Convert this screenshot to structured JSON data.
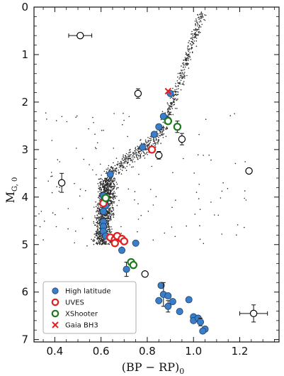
{
  "chart_data": {
    "type": "scatter",
    "xlabel": "(BP − RP)",
    "xlabel_sub": "0",
    "ylabel": "M",
    "ylabel_sub": "G, 0",
    "xlim": [
      0.31,
      1.37
    ],
    "ylim": [
      7.05,
      0.0
    ],
    "x_ticks": [
      0.4,
      0.6,
      0.8,
      1.0,
      1.2
    ],
    "x_tick_labels": [
      "0.4",
      "0.6",
      "0.8",
      "1.0",
      "1.2"
    ],
    "y_ticks": [
      0,
      1,
      2,
      3,
      4,
      5,
      6,
      7
    ],
    "y_tick_labels": [
      "0",
      "1",
      "2",
      "3",
      "4",
      "5",
      "6",
      "7"
    ],
    "y_inverted": true,
    "legend": {
      "placement": "bottom-left",
      "entries": [
        {
          "label": "High latitude",
          "marker": "filled-circle",
          "color": "#3a7dc9"
        },
        {
          "label": "UVES",
          "marker": "open-circle",
          "color": "#e02020"
        },
        {
          "label": "XShooter",
          "marker": "open-circle",
          "color": "#1e7a1e"
        },
        {
          "label": "Gaia BH3",
          "marker": "x",
          "color": "#e02020"
        }
      ]
    },
    "series": [
      {
        "name": "High latitude",
        "marker": "filled-circle",
        "color": "#3a7dc9",
        "points": [
          {
            "x": 0.9,
            "y": 1.82
          },
          {
            "x": 0.87,
            "y": 2.3
          },
          {
            "x": 0.89,
            "y": 2.38
          },
          {
            "x": 0.85,
            "y": 2.52
          },
          {
            "x": 0.83,
            "y": 2.68
          },
          {
            "x": 0.78,
            "y": 2.95
          },
          {
            "x": 0.64,
            "y": 3.52
          },
          {
            "x": 0.61,
            "y": 3.97
          },
          {
            "x": 0.62,
            "y": 4.18
          },
          {
            "x": 0.61,
            "y": 4.3
          },
          {
            "x": 0.61,
            "y": 4.52
          },
          {
            "x": 0.61,
            "y": 4.62
          },
          {
            "x": 0.61,
            "y": 4.72
          },
          {
            "x": 0.62,
            "y": 4.82
          },
          {
            "x": 0.65,
            "y": 4.86
          },
          {
            "x": 0.75,
            "y": 4.97
          },
          {
            "x": 0.69,
            "y": 5.12
          },
          {
            "x": 0.71,
            "y": 5.52,
            "yerr": 0.15
          },
          {
            "x": 0.86,
            "y": 5.86
          },
          {
            "x": 0.87,
            "y": 6.05,
            "yerr": 0.25
          },
          {
            "x": 0.85,
            "y": 6.18
          },
          {
            "x": 0.89,
            "y": 6.08
          },
          {
            "x": 0.89,
            "y": 6.3,
            "yerr": 0.12
          },
          {
            "x": 0.91,
            "y": 6.2
          },
          {
            "x": 0.94,
            "y": 6.41
          },
          {
            "x": 0.98,
            "y": 6.16
          },
          {
            "x": 1.0,
            "y": 6.52
          },
          {
            "x": 1.0,
            "y": 6.6
          },
          {
            "x": 1.02,
            "y": 6.55
          },
          {
            "x": 1.03,
            "y": 6.63,
            "yerr": 0.08
          },
          {
            "x": 1.05,
            "y": 6.78
          },
          {
            "x": 1.04,
            "y": 6.82
          }
        ]
      },
      {
        "name": "UVES",
        "marker": "open-circle",
        "color": "#e02020",
        "points": [
          {
            "x": 0.82,
            "y": 3.0
          },
          {
            "x": 0.61,
            "y": 4.13
          },
          {
            "x": 0.64,
            "y": 4.85
          },
          {
            "x": 0.66,
            "y": 4.89
          },
          {
            "x": 0.67,
            "y": 4.82
          },
          {
            "x": 0.66,
            "y": 4.97
          },
          {
            "x": 0.69,
            "y": 4.88
          },
          {
            "x": 0.7,
            "y": 4.93
          }
        ]
      },
      {
        "name": "XShooter",
        "marker": "open-circle",
        "color": "#1e7a1e",
        "points": [
          {
            "x": 0.89,
            "y": 2.4
          },
          {
            "x": 0.93,
            "y": 2.52,
            "yerr": 0.12
          },
          {
            "x": 0.62,
            "y": 4.02
          },
          {
            "x": 0.73,
            "y": 5.37
          },
          {
            "x": 0.74,
            "y": 5.43
          }
        ]
      },
      {
        "name": "Gaia BH3",
        "marker": "x",
        "color": "#e02020",
        "points": [
          {
            "x": 0.89,
            "y": 1.77
          }
        ]
      },
      {
        "marker": "open-circle",
        "color": "#000000",
        "points": [
          {
            "x": 0.51,
            "y": 0.6,
            "xerr": 0.05
          },
          {
            "x": 0.76,
            "y": 1.82,
            "yerr": 0.1
          },
          {
            "x": 0.95,
            "y": 2.78,
            "yerr": 0.12
          },
          {
            "x": 0.85,
            "y": 3.12,
            "yerr": 0.08
          },
          {
            "x": 1.24,
            "y": 3.45
          },
          {
            "x": 0.43,
            "y": 3.7,
            "yerr": 0.2
          },
          {
            "x": 0.79,
            "y": 5.62
          },
          {
            "x": 1.26,
            "y": 6.45,
            "xerr": 0.06,
            "yerr": 0.18
          }
        ]
      }
    ]
  }
}
